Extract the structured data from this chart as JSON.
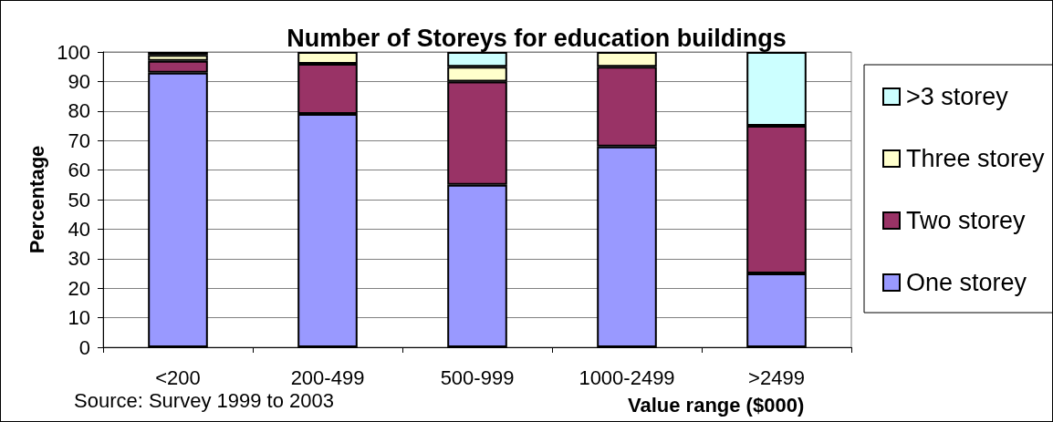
{
  "chart_data": {
    "type": "bar",
    "title": "Number of Storeys for education buildings",
    "xlabel": "Value range ($000)",
    "ylabel": "Percentage",
    "annotations": [
      "Source: Survey 1999 to 2003"
    ],
    "categories": [
      "<200",
      "200-499",
      "500-999",
      "1000-2499",
      ">2499"
    ],
    "series": [
      {
        "name": "One storey",
        "color": "#9999ff",
        "values": [
          93,
          79,
          55,
          68,
          25
        ]
      },
      {
        "name": "Two storey",
        "color": "#993366",
        "values": [
          4,
          17,
          35,
          27,
          50
        ]
      },
      {
        "name": "Three storey",
        "color": "#ffffcc",
        "values": [
          2,
          4,
          5,
          5,
          0
        ]
      },
      {
        "name": ">3 storey",
        "color": "#ccffff",
        "values": [
          1,
          0,
          5,
          0,
          25
        ]
      }
    ],
    "stacked": true,
    "ylim": [
      0,
      100
    ],
    "yticks": [
      0,
      10,
      20,
      30,
      40,
      50,
      60,
      70,
      80,
      90,
      100
    ],
    "grid": "y",
    "legend": "right"
  }
}
